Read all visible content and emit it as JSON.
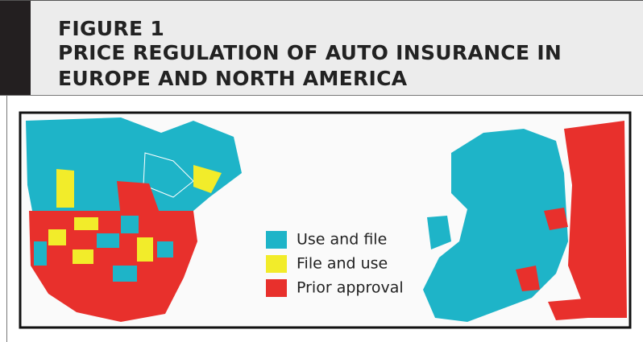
{
  "figure": {
    "label": "FIGURE 1",
    "title_lines": [
      "PRICE REGULATION OF AUTO INSURANCE IN",
      "EUROPE AND NORTH AMERICA"
    ]
  },
  "legend": [
    {
      "label": "Use and file",
      "color": "#1eb4c8"
    },
    {
      "label": "File and use",
      "color": "#f2ec2a"
    },
    {
      "label": "Prior approval",
      "color": "#e8302c"
    }
  ]
}
